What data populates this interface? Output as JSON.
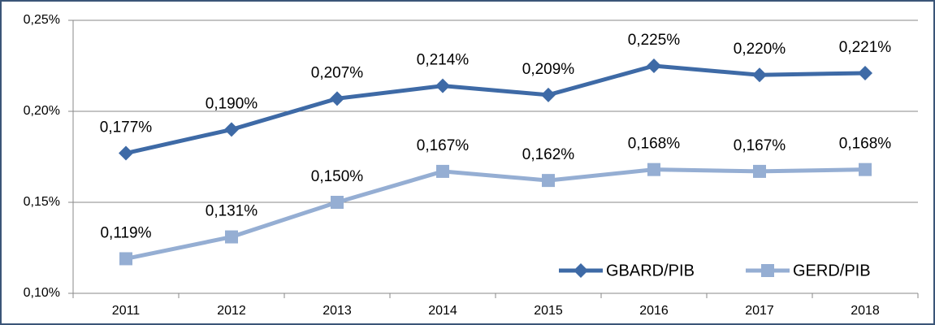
{
  "chart_data": {
    "type": "line",
    "categories": [
      "2011",
      "2012",
      "2013",
      "2014",
      "2015",
      "2016",
      "2017",
      "2018"
    ],
    "series": [
      {
        "name": "GBARD/PIB",
        "color": "#3e6aa6",
        "marker": "diamond",
        "values": [
          0.177,
          0.19,
          0.207,
          0.214,
          0.209,
          0.225,
          0.22,
          0.221
        ],
        "value_labels": [
          "0,177%",
          "0,190%",
          "0,207%",
          "0,214%",
          "0,209%",
          "0,225%",
          "0,220%",
          "0,221%"
        ]
      },
      {
        "name": "GERD/PIB",
        "color": "#95aed3",
        "marker": "square",
        "values": [
          0.119,
          0.131,
          0.15,
          0.167,
          0.162,
          0.168,
          0.167,
          0.168
        ],
        "value_labels": [
          "0,119%",
          "0,131%",
          "0,150%",
          "0,167%",
          "0,162%",
          "0,168%",
          "0,167%",
          "0,168%"
        ]
      }
    ],
    "ylim": [
      0.1,
      0.25
    ],
    "yticks": [
      {
        "value": 0.1,
        "label": "0,10%"
      },
      {
        "value": 0.15,
        "label": "0,15%"
      },
      {
        "value": 0.2,
        "label": "0,20%"
      },
      {
        "value": 0.25,
        "label": "0,25%"
      }
    ],
    "grid": true,
    "legend": "lower right"
  }
}
